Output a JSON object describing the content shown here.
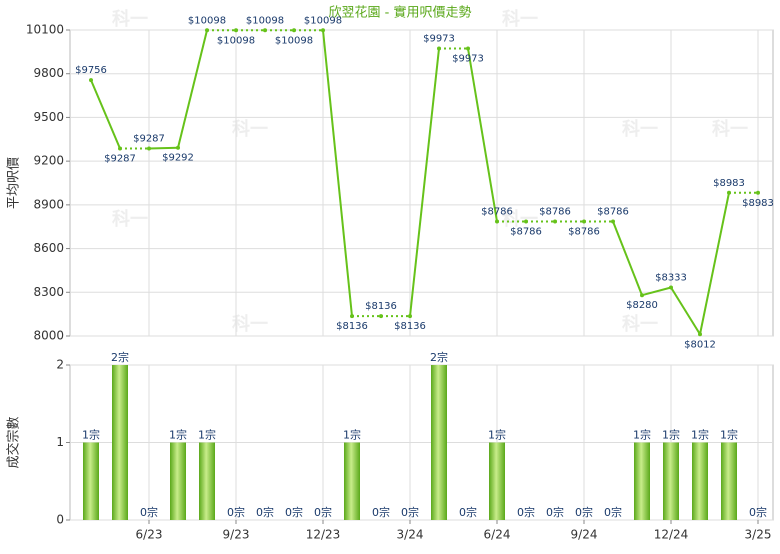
{
  "chart_data": [
    {
      "type": "line",
      "title": "欣翌花園 - 實用呎價走勢",
      "ylabel": "平均呎價",
      "watermark": "科一",
      "color": "#66c21a",
      "ylim": [
        8000,
        10100
      ],
      "yticks": [
        8000,
        8300,
        8600,
        8900,
        9200,
        9500,
        9800,
        10100
      ],
      "grid": true,
      "values": [
        9756,
        9287,
        9287,
        9292,
        10098,
        10098,
        10098,
        10098,
        10098,
        8136,
        8136,
        8136,
        9973,
        9973,
        8786,
        8786,
        8786,
        8786,
        8786,
        8280,
        8333,
        8012,
        8983,
        8983
      ],
      "value_labels": [
        "$9756",
        "$9287",
        "$9287",
        "$9292",
        "$10098",
        "$10098",
        "$10098",
        "$10098",
        "$10098",
        "$8136",
        "$8136",
        "$8136",
        "$9973",
        "$9973",
        "$8786",
        "$8786",
        "$8786",
        "$8786",
        "$8786",
        "$8280",
        "$8333",
        "$8012",
        "$8983",
        "$8983"
      ]
    },
    {
      "type": "bar",
      "ylabel": "成交宗數",
      "color": "#7cc832",
      "ylim": [
        0,
        2
      ],
      "yticks": [
        0,
        1,
        2
      ],
      "grid": true,
      "categories": [
        null,
        null,
        "6/23",
        null,
        null,
        "9/23",
        null,
        null,
        "12/23",
        null,
        null,
        "3/24",
        null,
        null,
        "6/24",
        null,
        null,
        "9/24",
        null,
        null,
        "12/24",
        null,
        null,
        "3/25"
      ],
      "values": [
        1,
        2,
        0,
        1,
        1,
        0,
        0,
        0,
        0,
        1,
        0,
        0,
        2,
        0,
        1,
        0,
        0,
        0,
        0,
        1,
        1,
        1,
        1,
        0
      ],
      "value_labels": [
        "1宗",
        "2宗",
        "0宗",
        "1宗",
        "1宗",
        "0宗",
        "0宗",
        "0宗",
        "0宗",
        "1宗",
        "0宗",
        "0宗",
        "2宗",
        "0宗",
        "1宗",
        "0宗",
        "0宗",
        "0宗",
        "0宗",
        "1宗",
        "1宗",
        "1宗",
        "1宗",
        "0宗"
      ]
    }
  ]
}
